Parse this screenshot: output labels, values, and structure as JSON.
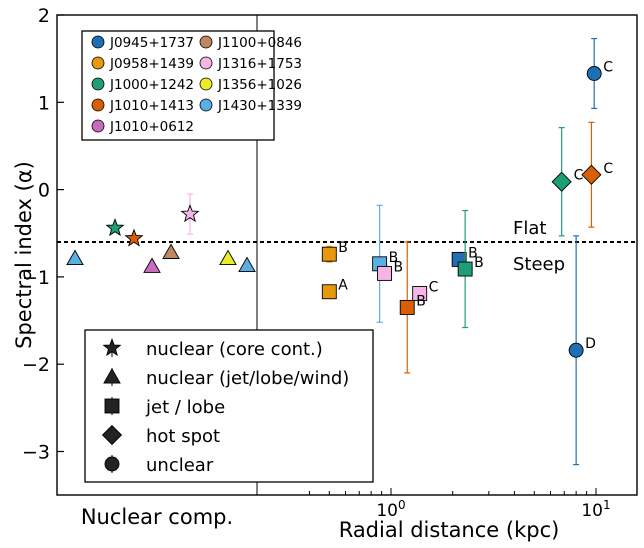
{
  "chart_data": {
    "type": "scatter",
    "title": "",
    "xlabel": "Radial distance (kpc)",
    "ylabel": "Spectral index (α)",
    "nuclear_panel_label": "Nuclear comp.",
    "ylim": [
      -3.5,
      2
    ],
    "yticks": [
      2,
      1,
      0,
      -1,
      -2,
      -3
    ],
    "ytick_labels": [
      "2",
      "1",
      "0",
      "−1",
      "−2",
      "−3"
    ],
    "x_scale": "log",
    "xlim_kpc": [
      0.32,
      15.5
    ],
    "xticks_kpc": [
      1,
      10
    ],
    "xtick_labels": [
      {
        "base": "10",
        "exp": "0"
      },
      {
        "base": "10",
        "exp": "1"
      }
    ],
    "grid": false,
    "flat_steep_threshold": -0.6,
    "threshold_labels": {
      "above": "Flat",
      "below": "Steep"
    },
    "colors": {
      "J0945+1737": "#1f6fb4",
      "J0958+1439": "#e8980f",
      "J1000+1242": "#1e9e74",
      "J1010+1413": "#d95f02",
      "J1010+0612": "#c86bbf",
      "J1100+0846": "#c08860",
      "J1316+1753": "#f7b5e6",
      "J1356+1026": "#ecec2a",
      "J1430+1339": "#5aaee6"
    },
    "legend_sources": [
      "J0945+1737",
      "J0958+1439",
      "J1000+1242",
      "J1010+1413",
      "J1010+0612",
      "J1100+0846",
      "J1316+1753",
      "J1356+1026",
      "J1430+1339"
    ],
    "legend_sources_placement": "top-left",
    "legend_markers": [
      {
        "marker": "star",
        "label": "nuclear (core cont.)"
      },
      {
        "marker": "triangle",
        "label": "nuclear (jet/lobe/wind)"
      },
      {
        "marker": "square",
        "label": "jet / lobe"
      },
      {
        "marker": "diamond",
        "label": "hot spot"
      },
      {
        "marker": "circle",
        "label": "unclear"
      }
    ],
    "legend_markers_placement": "bottom-left",
    "nuclear_points": [
      {
        "source": "J1430+1339",
        "marker": "triangle",
        "alpha": -0.79
      },
      {
        "source": "J1000+1242",
        "marker": "star",
        "alpha": -0.44
      },
      {
        "source": "J1010+1413",
        "marker": "star",
        "alpha": -0.56
      },
      {
        "source": "J1010+0612",
        "marker": "triangle",
        "alpha": -0.88
      },
      {
        "source": "J1100+0846",
        "marker": "triangle",
        "alpha": -0.72
      },
      {
        "source": "J1316+1753",
        "marker": "star",
        "alpha": -0.28,
        "err": 0.23
      },
      {
        "source": "J1356+1026",
        "marker": "triangle",
        "alpha": -0.79
      },
      {
        "source": "J1430+1339",
        "marker": "triangle",
        "alpha": -0.87
      }
    ],
    "points": [
      {
        "source": "J0958+1439",
        "marker": "square",
        "r_kpc": 0.5,
        "alpha": -0.74,
        "err": 0.09,
        "label": "B"
      },
      {
        "source": "J0958+1439",
        "marker": "square",
        "r_kpc": 0.5,
        "alpha": -1.17,
        "err": 0.07,
        "label": "A"
      },
      {
        "source": "J1430+1339",
        "marker": "square",
        "r_kpc": 0.88,
        "alpha": -0.85,
        "err": 0.67,
        "label": "B"
      },
      {
        "source": "J1316+1753",
        "marker": "square",
        "r_kpc": 0.93,
        "alpha": -0.96,
        "err": 0.07,
        "label": "B"
      },
      {
        "source": "J1316+1753",
        "marker": "square",
        "r_kpc": 1.38,
        "alpha": -1.19,
        "err": 0.07,
        "label": "C"
      },
      {
        "source": "J1010+1413",
        "marker": "square",
        "r_kpc": 1.2,
        "alpha": -1.35,
        "err": 0.75,
        "label": "B"
      },
      {
        "source": "J0945+1737",
        "marker": "square",
        "r_kpc": 2.15,
        "alpha": -0.8,
        "err": 0.08,
        "label": "B"
      },
      {
        "source": "J1000+1242",
        "marker": "square",
        "r_kpc": 2.3,
        "alpha": -0.91,
        "err": 0.67,
        "label": "B"
      },
      {
        "source": "J1000+1242",
        "marker": "diamond",
        "r_kpc": 6.8,
        "alpha": 0.09,
        "err": 0.62,
        "label": "C"
      },
      {
        "source": "J1010+1413",
        "marker": "diamond",
        "r_kpc": 9.5,
        "alpha": 0.17,
        "err": 0.6,
        "label": "C"
      },
      {
        "source": "J0945+1737",
        "marker": "circle",
        "r_kpc": 9.8,
        "alpha": 1.33,
        "err": 0.4,
        "label": "C"
      },
      {
        "source": "J0945+1737",
        "marker": "circle",
        "r_kpc": 8.0,
        "alpha": -1.84,
        "err": 1.31,
        "label": "D"
      }
    ]
  }
}
